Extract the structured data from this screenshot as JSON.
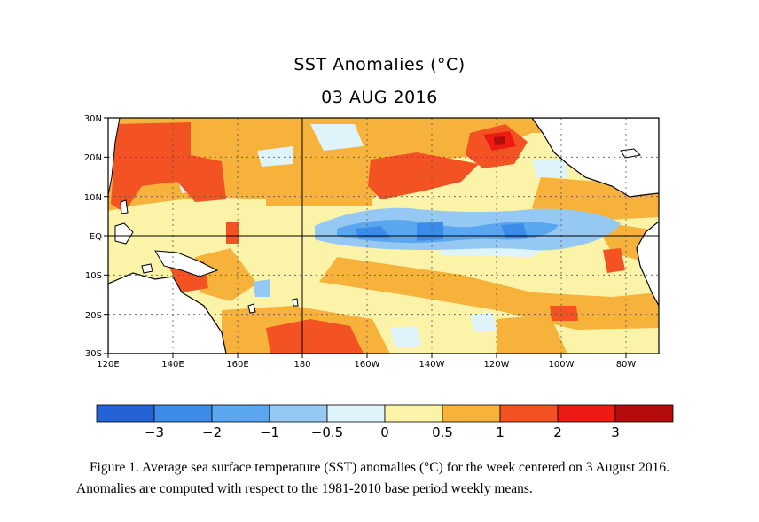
{
  "title": "SST Anomalies (°C)",
  "subtitle": "03 AUG 2016",
  "map": {
    "region": "Tropical Pacific Ocean",
    "lat_labels": [
      "30N",
      "20N",
      "10N",
      "EQ",
      "10S",
      "20S",
      "30S"
    ],
    "lon_labels": [
      "120E",
      "140E",
      "160E",
      "180",
      "160W",
      "140W",
      "120W",
      "100W",
      "80W"
    ],
    "features": [
      {
        "label": "Equatorial cold tongue",
        "anomaly_c": -1.2,
        "location": "equator 160W–100W"
      },
      {
        "label": "Warm anomaly off Baja California",
        "anomaly_c": 2.3,
        "location": "20N 120W"
      },
      {
        "label": "Warm anomaly northwest Pacific",
        "anomaly_c": 1.5,
        "location": "20N 135E"
      },
      {
        "label": "Warm anomaly central South Pacific",
        "anomaly_c": 1.5,
        "location": "25S 170W"
      },
      {
        "label": "Warm anomaly off Peru",
        "anomaly_c": 1.4,
        "location": "10S 85W"
      }
    ]
  },
  "colorbar": {
    "colors": [
      "#2463d6",
      "#3d8be8",
      "#5aa7f0",
      "#96c8f4",
      "#dff3fb",
      "#fbf3a8",
      "#f7b23c",
      "#f35323",
      "#ee1b12",
      "#b40b0b"
    ],
    "tick_labels": [
      "−3",
      "−2",
      "−1",
      "−0.5",
      "0",
      "0.5",
      "1",
      "2",
      "3"
    ]
  },
  "caption": {
    "line1": "Figure 1. Average sea surface temperature (SST) anomalies (°C) for the week centered on 3 August 2016.",
    "line2": "Anomalies are computed with respect to the 1981-2010 base period weekly means."
  }
}
